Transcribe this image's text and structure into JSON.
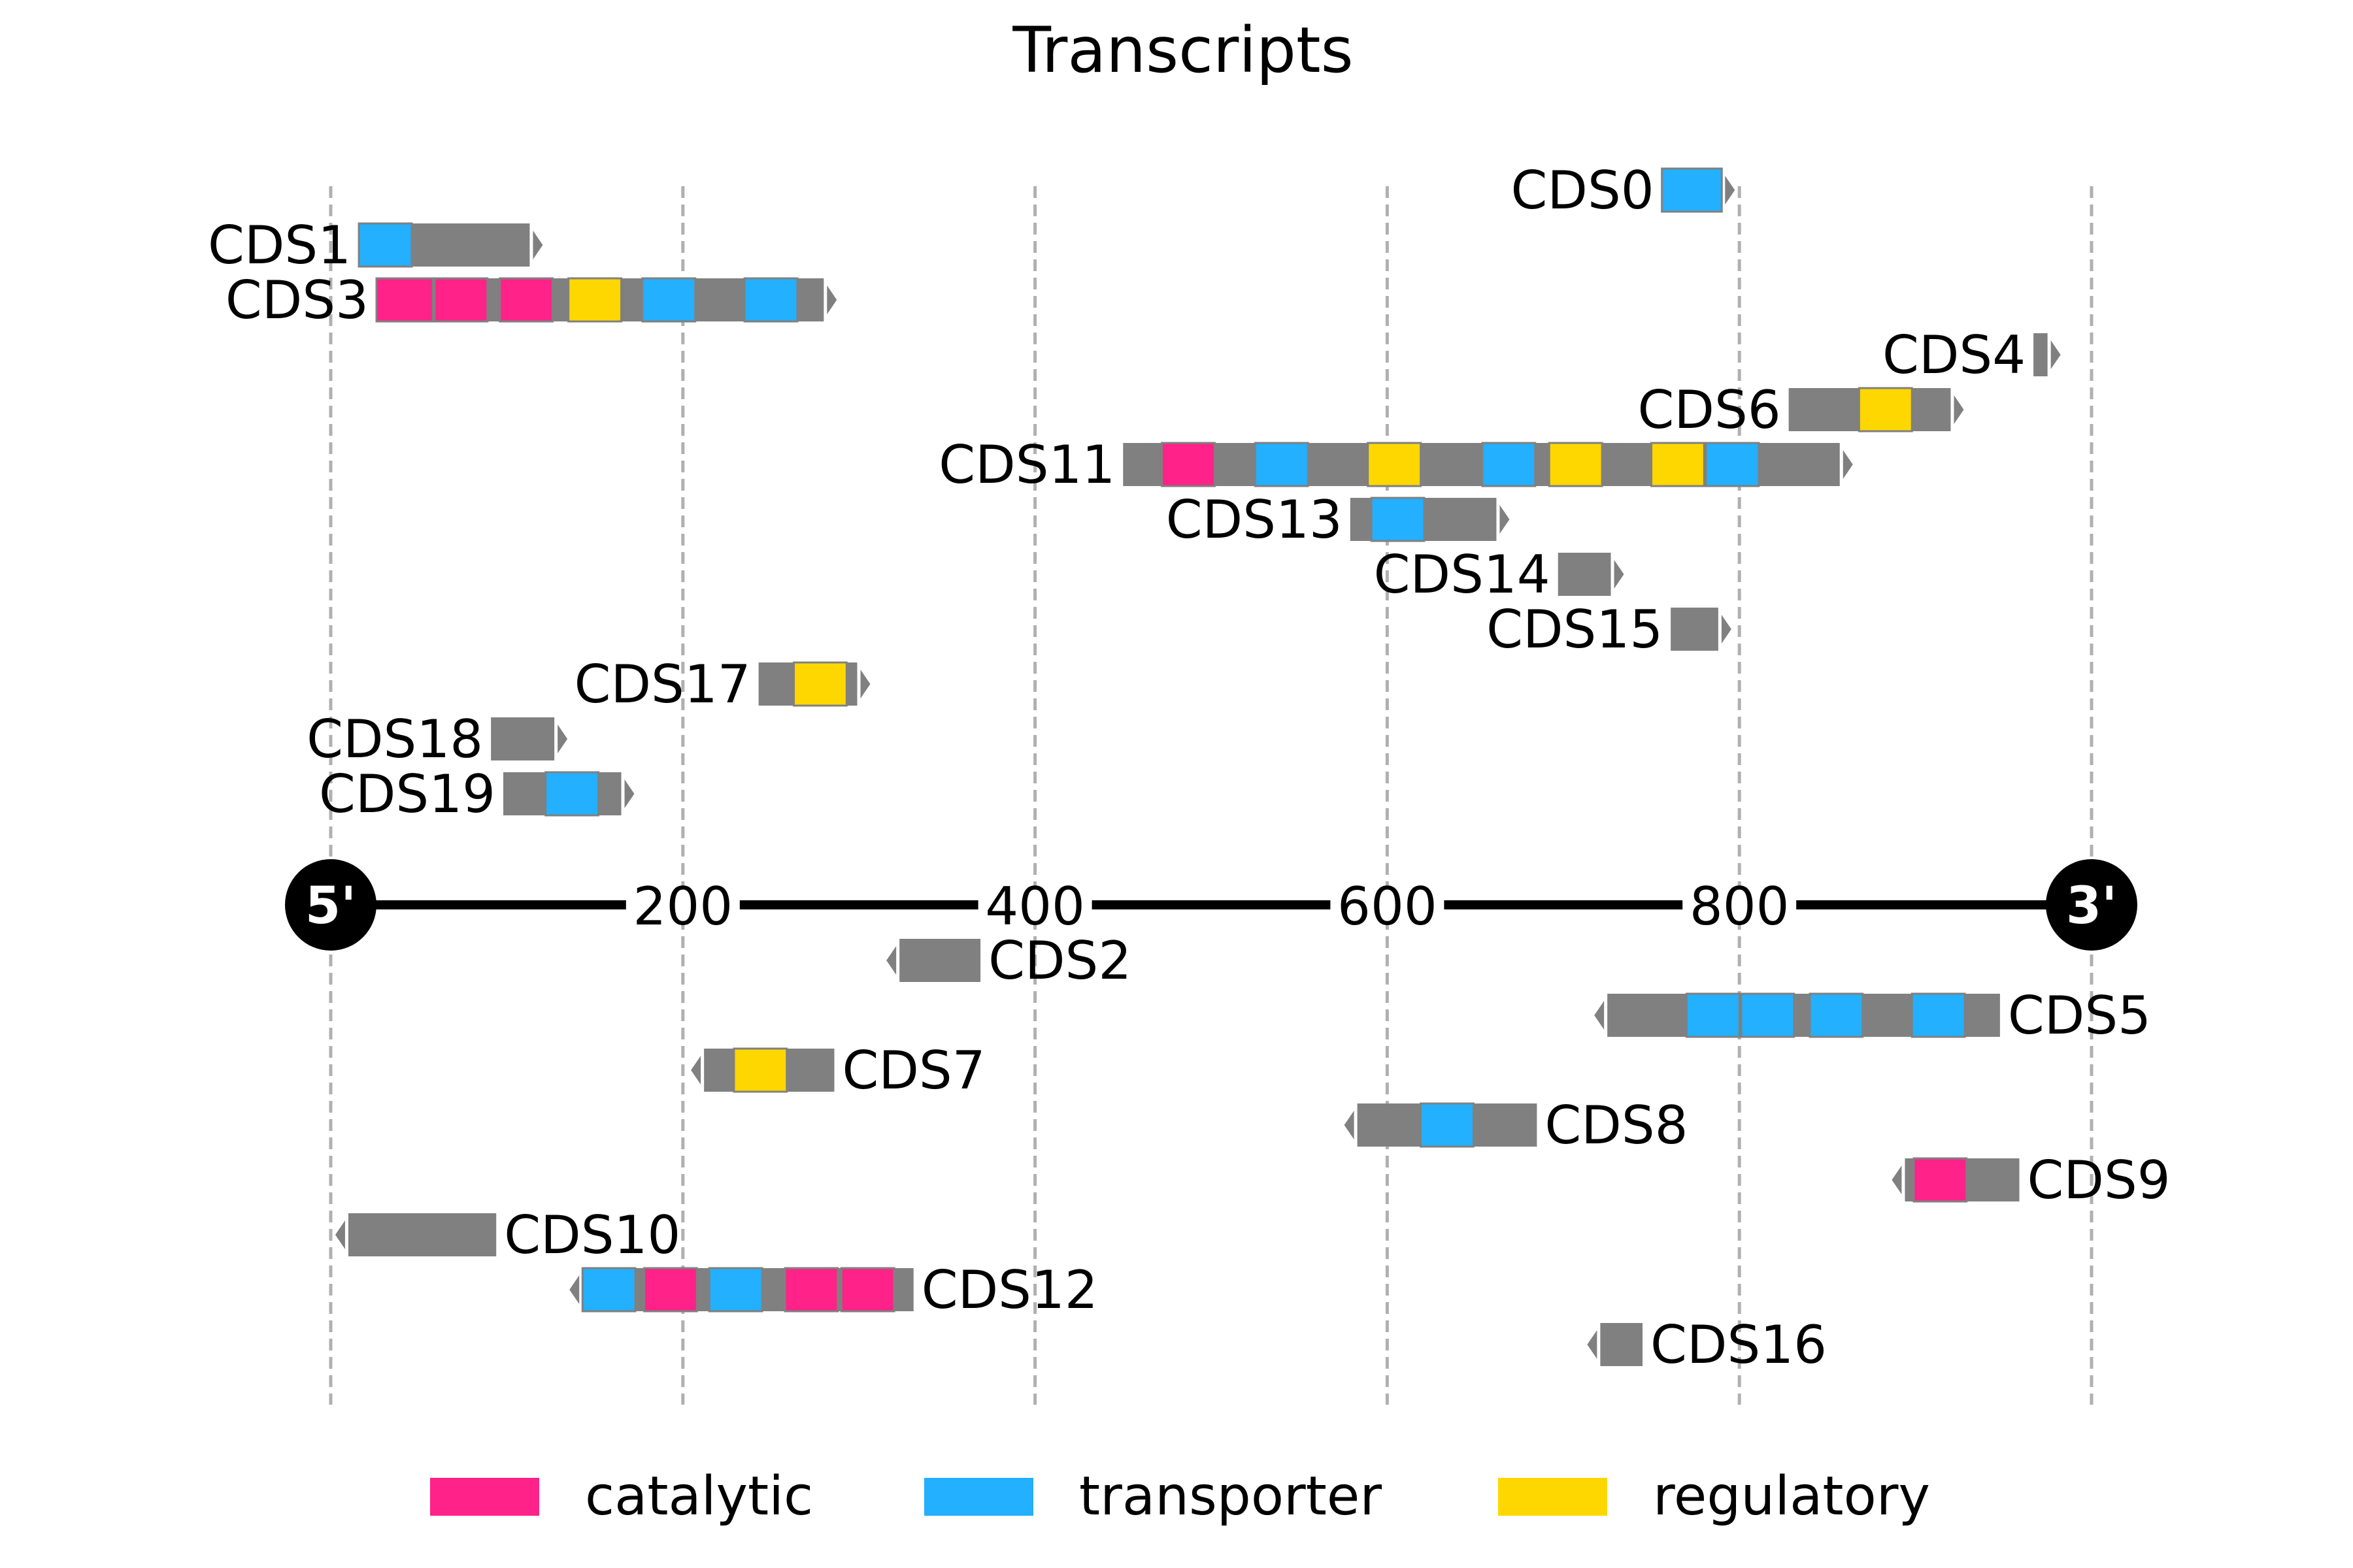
{
  "title": "Transcripts",
  "axis": {
    "min": 0,
    "max": 1000,
    "ticks": [
      200,
      400,
      600,
      800
    ],
    "grid_at": [
      0,
      200,
      400,
      600,
      800,
      1000
    ],
    "five_prime_label": "5'",
    "three_prime_label": "3'"
  },
  "colors": {
    "catalytic": "#ff2288",
    "transporter": "#22b0ff",
    "regulatory": "#ffd700",
    "cds": "#808080",
    "grid": "#b0b0b0",
    "axis": "#000000"
  },
  "legend": [
    {
      "label": "catalytic",
      "color": "#ff2288"
    },
    {
      "label": "transporter",
      "color": "#22b0ff"
    },
    {
      "label": "regulatory",
      "color": "#ffd700"
    }
  ],
  "cds": [
    {
      "name": "CDS0",
      "strand": "+",
      "lane": 12,
      "start": 756,
      "end": 790,
      "domains": [
        {
          "type": "transporter",
          "start": 756,
          "end": 790
        }
      ]
    },
    {
      "name": "CDS1",
      "strand": "+",
      "lane": 11,
      "start": 16,
      "end": 113,
      "domains": [
        {
          "type": "transporter",
          "start": 16,
          "end": 46
        }
      ]
    },
    {
      "name": "CDS3",
      "strand": "+",
      "lane": 10,
      "start": 26,
      "end": 280,
      "domains": [
        {
          "type": "catalytic",
          "start": 26,
          "end": 58
        },
        {
          "type": "catalytic",
          "start": 59,
          "end": 89
        },
        {
          "type": "catalytic",
          "start": 96,
          "end": 126
        },
        {
          "type": "regulatory",
          "start": 135,
          "end": 165
        },
        {
          "type": "transporter",
          "start": 177,
          "end": 207
        },
        {
          "type": "transporter",
          "start": 235,
          "end": 265
        }
      ]
    },
    {
      "name": "CDS4",
      "strand": "+",
      "lane": 9,
      "start": 967,
      "end": 975,
      "domains": []
    },
    {
      "name": "CDS6",
      "strand": "+",
      "lane": 8,
      "start": 828,
      "end": 920,
      "domains": [
        {
          "type": "regulatory",
          "start": 868,
          "end": 898
        }
      ]
    },
    {
      "name": "CDS11",
      "strand": "+",
      "lane": 7,
      "start": 450,
      "end": 857,
      "domains": [
        {
          "type": "catalytic",
          "start": 472,
          "end": 502
        },
        {
          "type": "transporter",
          "start": 525,
          "end": 555
        },
        {
          "type": "regulatory",
          "start": 589,
          "end": 619
        },
        {
          "type": "transporter",
          "start": 654,
          "end": 684
        },
        {
          "type": "regulatory",
          "start": 692,
          "end": 722
        },
        {
          "type": "regulatory",
          "start": 750,
          "end": 780
        },
        {
          "type": "transporter",
          "start": 781,
          "end": 811
        }
      ]
    },
    {
      "name": "CDS13",
      "strand": "+",
      "lane": 6,
      "start": 579,
      "end": 662,
      "domains": [
        {
          "type": "transporter",
          "start": 591,
          "end": 621
        }
      ]
    },
    {
      "name": "CDS14",
      "strand": "+",
      "lane": 5,
      "start": 697,
      "end": 727,
      "domains": []
    },
    {
      "name": "CDS15",
      "strand": "+",
      "lane": 4,
      "start": 761,
      "end": 788,
      "domains": []
    },
    {
      "name": "CDS17",
      "strand": "+",
      "lane": 3,
      "start": 243,
      "end": 299,
      "domains": [
        {
          "type": "regulatory",
          "start": 263,
          "end": 293
        }
      ]
    },
    {
      "name": "CDS18",
      "strand": "+",
      "lane": 2,
      "start": 91,
      "end": 127,
      "domains": []
    },
    {
      "name": "CDS19",
      "strand": "+",
      "lane": 1,
      "start": 98,
      "end": 165,
      "domains": [
        {
          "type": "transporter",
          "start": 122,
          "end": 152
        }
      ]
    },
    {
      "name": "CDS2",
      "strand": "-",
      "lane": -1,
      "start": 323,
      "end": 369,
      "domains": []
    },
    {
      "name": "CDS5",
      "strand": "-",
      "lane": -2,
      "start": 725,
      "end": 948,
      "domains": [
        {
          "type": "transporter",
          "start": 770,
          "end": 800
        },
        {
          "type": "transporter",
          "start": 801,
          "end": 831
        },
        {
          "type": "transporter",
          "start": 840,
          "end": 870
        },
        {
          "type": "transporter",
          "start": 898,
          "end": 928
        }
      ]
    },
    {
      "name": "CDS7",
      "strand": "-",
      "lane": -3,
      "start": 212,
      "end": 286,
      "domains": [
        {
          "type": "regulatory",
          "start": 229,
          "end": 259
        }
      ]
    },
    {
      "name": "CDS8",
      "strand": "-",
      "lane": -4,
      "start": 583,
      "end": 685,
      "domains": [
        {
          "type": "transporter",
          "start": 619,
          "end": 649
        }
      ]
    },
    {
      "name": "CDS9",
      "strand": "-",
      "lane": -5,
      "start": 894,
      "end": 959,
      "domains": [
        {
          "type": "catalytic",
          "start": 899,
          "end": 929
        }
      ]
    },
    {
      "name": "CDS10",
      "strand": "-",
      "lane": -6,
      "start": 10,
      "end": 94,
      "domains": []
    },
    {
      "name": "CDS12",
      "strand": "-",
      "lane": -7,
      "start": 143,
      "end": 331,
      "domains": [
        {
          "type": "transporter",
          "start": 143,
          "end": 173
        },
        {
          "type": "catalytic",
          "start": 178,
          "end": 208
        },
        {
          "type": "transporter",
          "start": 215,
          "end": 245
        },
        {
          "type": "catalytic",
          "start": 258,
          "end": 288
        },
        {
          "type": "catalytic",
          "start": 290,
          "end": 320
        }
      ]
    },
    {
      "name": "CDS16",
      "strand": "-",
      "lane": -8,
      "start": 721,
      "end": 745,
      "domains": []
    }
  ]
}
